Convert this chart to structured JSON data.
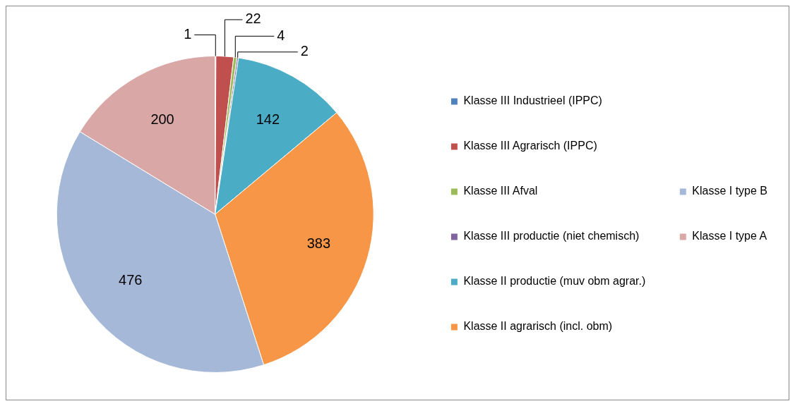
{
  "chart_data": {
    "type": "pie",
    "categories": [
      "Klasse III Industrieel (IPPC)",
      "Klasse III Agrarisch (IPPC)",
      "Klasse III Afval",
      "Klasse III productie (niet chemisch)",
      "Klasse II productie (muv obm agrar.)",
      "Klasse II agrarisch (incl. obm)",
      "Klasse I type B",
      "Klasse I type A"
    ],
    "values": [
      1,
      22,
      4,
      2,
      142,
      383,
      476,
      200
    ],
    "colors": [
      "#4f81bd",
      "#c0504d",
      "#9bbb59",
      "#8064a2",
      "#4bacc6",
      "#f79646",
      "#a5b8d8",
      "#d9a7a6"
    ],
    "data_labels": true,
    "legend": "right"
  }
}
